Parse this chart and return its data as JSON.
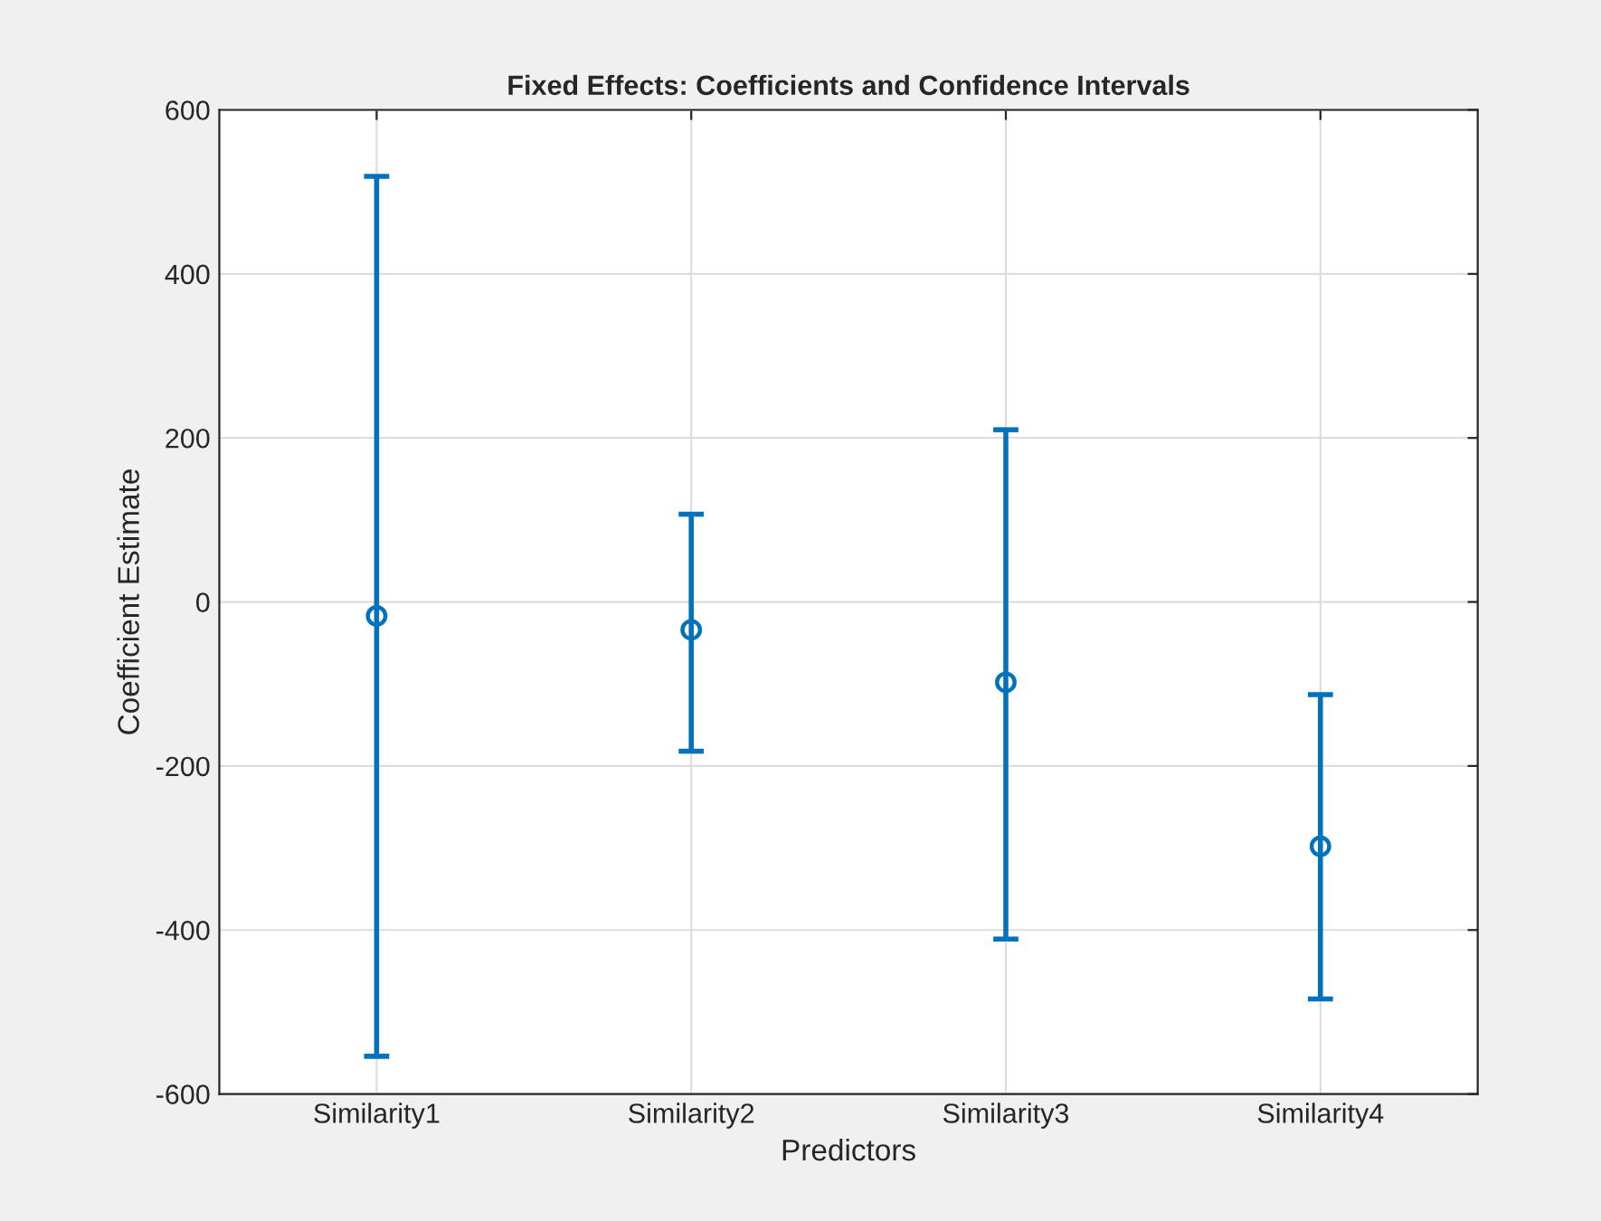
{
  "chart_data": {
    "type": "scatter",
    "title": "Fixed Effects: Coefficients and Confidence Intervals",
    "xlabel": "Predictors",
    "ylabel": "Coefficient Estimate",
    "categories": [
      "Similarity1",
      "Similarity2",
      "Similarity3",
      "Similarity4"
    ],
    "series": [
      {
        "color": "#0072bd",
        "values": [
          -17,
          -34,
          -98,
          -298
        ],
        "errors": [
          [
            -554,
            519
          ],
          [
            -182,
            107
          ],
          [
            -411,
            210
          ],
          [
            -484,
            -113
          ]
        ]
      }
    ],
    "ylim": [
      -600,
      600
    ],
    "yticks": [
      -600,
      -400,
      -200,
      0,
      200,
      400,
      600
    ],
    "grid": true,
    "marker": "circle",
    "legend": false
  }
}
